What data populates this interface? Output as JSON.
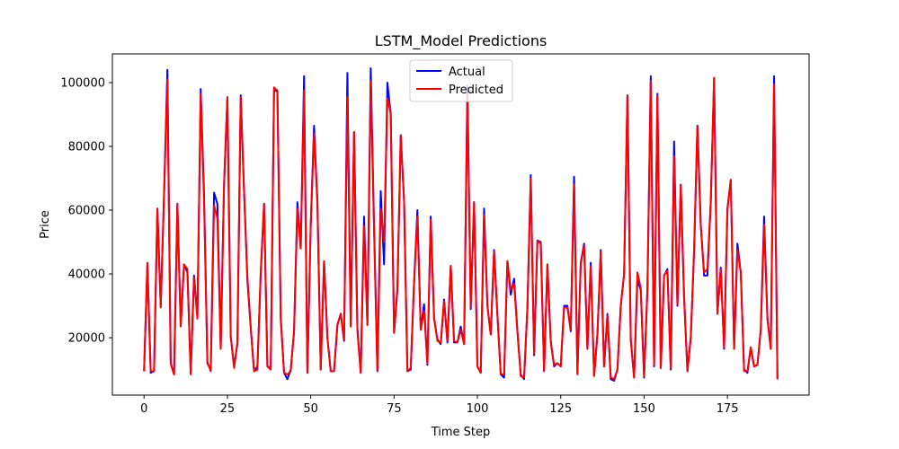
{
  "chart_data": {
    "type": "line",
    "title": "LSTM_Model Predictions",
    "xlabel": "Time Step",
    "ylabel": "Price",
    "xlim": [
      -9.5,
      199.5
    ],
    "ylim": [
      2000,
      109000
    ],
    "xticks": [
      0,
      25,
      50,
      75,
      100,
      125,
      150,
      175
    ],
    "yticks": [
      20000,
      40000,
      60000,
      80000,
      100000
    ],
    "xtick_labels": [
      "0",
      "25",
      "50",
      "75",
      "100",
      "125",
      "150",
      "175"
    ],
    "ytick_labels": [
      "20000",
      "40000",
      "60000",
      "80000",
      "100000"
    ],
    "legend_position": "top-center",
    "grid": false,
    "series": [
      {
        "name": "Actual",
        "color": "#0000ff",
        "values": [
          9500,
          43000,
          9000,
          9500,
          60500,
          30000,
          65000,
          104000,
          12000,
          8500,
          62000,
          24000,
          43000,
          40500,
          9000,
          39500,
          26500,
          98000,
          65000,
          12000,
          10000,
          65500,
          62000,
          17000,
          68000,
          95000,
          20500,
          11000,
          18000,
          96000,
          66000,
          38000,
          23000,
          9500,
          11000,
          40000,
          62000,
          11000,
          10500,
          98000,
          97000,
          26000,
          9000,
          7000,
          10000,
          22000,
          62500,
          48000,
          102000,
          9000,
          55000,
          86500,
          62000,
          10000,
          44000,
          20000,
          9500,
          9500,
          24000,
          27500,
          19000,
          103000,
          24000,
          84500,
          23000,
          9000,
          58000,
          24000,
          104500,
          55000,
          9500,
          66000,
          43000,
          100000,
          90000,
          21500,
          35000,
          83500,
          63000,
          9500,
          10000,
          37500,
          60000,
          22500,
          30500,
          11500,
          58000,
          26000,
          19500,
          18000,
          32000,
          18500,
          42500,
          18500,
          18500,
          23500,
          18000,
          99000,
          29000,
          62500,
          11000,
          9000,
          60500,
          30000,
          21000,
          47500,
          27000,
          8500,
          7500,
          44000,
          33500,
          38500,
          22000,
          8500,
          7000,
          29500,
          71000,
          14500,
          50500,
          50000,
          9500,
          43000,
          19000,
          11000,
          12000,
          11000,
          30000,
          30000,
          22000,
          70500,
          9000,
          43500,
          49500,
          16500,
          43500,
          8000,
          21000,
          47500,
          11000,
          27500,
          7000,
          6500,
          10000,
          30000,
          40000,
          96000,
          19500,
          7500,
          38000,
          35000,
          7500,
          35500,
          102000,
          11000,
          96500,
          10500,
          39500,
          41500,
          10000,
          81500,
          30000,
          68000,
          32500,
          9500,
          20000,
          47000,
          86500,
          55500,
          39500,
          39500,
          62500,
          101500,
          27500,
          42000,
          16500,
          60500,
          69500,
          16500,
          49500,
          40500,
          10000,
          9000,
          17000,
          11000,
          11500,
          22500,
          58000,
          26000,
          16500,
          102000,
          7000
        ]
      },
      {
        "name": "Predicted",
        "color": "#ff0000",
        "values": [
          9500,
          43500,
          9500,
          9500,
          60500,
          29500,
          64500,
          101000,
          12000,
          8500,
          62000,
          23500,
          43000,
          41500,
          8500,
          39000,
          26000,
          96500,
          63000,
          12500,
          9500,
          61500,
          57500,
          16500,
          68000,
          95500,
          20500,
          10500,
          18500,
          95500,
          66000,
          39000,
          23500,
          9500,
          10000,
          40500,
          62000,
          11000,
          10000,
          98500,
          97500,
          26500,
          9000,
          8500,
          9500,
          22000,
          60500,
          48000,
          97500,
          9000,
          55500,
          84000,
          63500,
          10000,
          44000,
          20000,
          9500,
          9500,
          24000,
          27500,
          19500,
          95500,
          23500,
          84500,
          22000,
          9000,
          55000,
          24000,
          100500,
          53500,
          9500,
          60500,
          50000,
          95000,
          90500,
          21500,
          35500,
          83500,
          63000,
          9500,
          10500,
          37000,
          58000,
          22500,
          28500,
          12000,
          57000,
          26500,
          19000,
          18500,
          31500,
          19000,
          42500,
          19000,
          18500,
          22500,
          18000,
          96500,
          29500,
          62500,
          11000,
          9000,
          58500,
          30000,
          21000,
          47000,
          27500,
          8500,
          8500,
          44000,
          35000,
          37000,
          22000,
          8000,
          7500,
          29000,
          70000,
          15000,
          50500,
          49500,
          9500,
          43000,
          18500,
          11500,
          12000,
          11000,
          29500,
          29500,
          22500,
          68000,
          8500,
          43000,
          49000,
          16500,
          42500,
          8000,
          21000,
          47000,
          11000,
          27000,
          7500,
          7000,
          10000,
          30000,
          40000,
          96000,
          19500,
          7500,
          40500,
          35500,
          8000,
          35000,
          100500,
          11500,
          96000,
          10500,
          39500,
          41000,
          10500,
          77000,
          30500,
          68000,
          33000,
          9500,
          20000,
          47500,
          86500,
          55000,
          40500,
          41500,
          62500,
          101500,
          27500,
          41500,
          17000,
          60000,
          69500,
          16500,
          47500,
          40500,
          9500,
          9500,
          17000,
          11000,
          11500,
          22500,
          55500,
          26000,
          16500,
          99500,
          7000
        ]
      }
    ]
  }
}
